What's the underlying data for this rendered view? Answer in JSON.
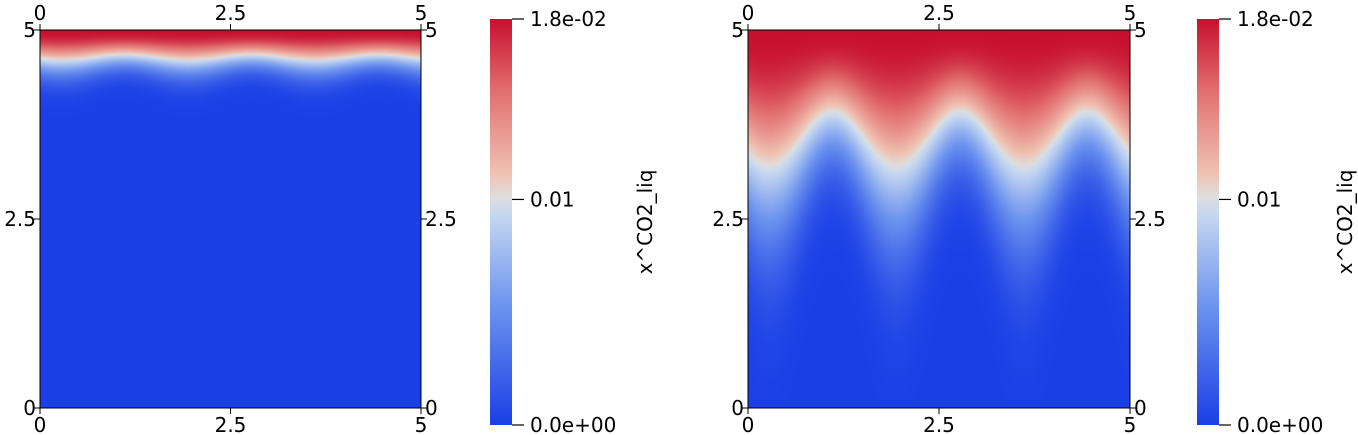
{
  "chart_data": [
    {
      "type": "heatmap",
      "panel": "left",
      "x_ticks": [
        "0",
        "2.5",
        "5"
      ],
      "y_ticks": [
        "0",
        "2.5",
        "5"
      ],
      "xlim": [
        0,
        5
      ],
      "ylim": [
        0,
        5
      ],
      "colorbar": {
        "title": "x^CO2_liq",
        "min": 0,
        "max": 0.018,
        "tick_labels": [
          "0.0e+00",
          "0.01",
          "1.8e-02"
        ],
        "tick_values": [
          0,
          0.01,
          0.018
        ],
        "colors": [
          "#1a3fe6",
          "#b9d0f3",
          "#dcdcdc",
          "#f2b9a3",
          "#c8102e"
        ]
      },
      "front": {
        "mean_depth": 4.55,
        "amplitude": 0.1,
        "fingers": 3,
        "finger_width": 0.35
      }
    },
    {
      "type": "heatmap",
      "panel": "right",
      "x_ticks": [
        "0",
        "2.5",
        "5"
      ],
      "y_ticks": [
        "0",
        "2.5",
        "5"
      ],
      "xlim": [
        0,
        5
      ],
      "ylim": [
        0,
        5
      ],
      "colorbar": {
        "title": "x^CO2_liq",
        "min": 0,
        "max": 0.018,
        "tick_labels": [
          "0.0e+00",
          "0.01",
          "1.8e-02"
        ],
        "tick_values": [
          0,
          0.01,
          0.018
        ],
        "colors": [
          "#1a3fe6",
          "#b9d0f3",
          "#dcdcdc",
          "#f2b9a3",
          "#c8102e"
        ]
      },
      "front": {
        "mean_depth": 3.5,
        "amplitude": 1.0,
        "fingers": 3,
        "finger_width": 0.55
      }
    }
  ]
}
